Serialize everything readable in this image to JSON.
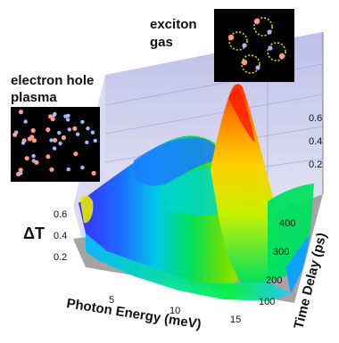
{
  "chart_data": {
    "type": "area",
    "x_axis_label": "Photon Energy (meV)",
    "y_axis_label": "Time Delay (ps)",
    "z_axis_label": "ΔT",
    "x_ticks": [
      "5",
      "10",
      "15"
    ],
    "y_ticks": [
      "100",
      "200",
      "300",
      "400"
    ],
    "z_ticks_left": [
      "0.2",
      "0.4",
      "0.6"
    ],
    "z_ticks_right": [
      "0.2",
      "0.4",
      "0.6"
    ],
    "annotations": [
      {
        "text": "exciton\ngas"
      },
      {
        "text": "electron hole\nplasma"
      }
    ],
    "surface_profile": {
      "photon_energy": [
        1,
        3,
        5,
        7,
        9,
        11,
        13,
        15
      ],
      "time_delay": [
        100,
        200,
        300,
        400,
        500
      ],
      "delta_t": [
        [
          0.3,
          0.25,
          0.22,
          0.22,
          0.28,
          0.55,
          0.45,
          0.3
        ],
        [
          0.25,
          0.2,
          0.18,
          0.2,
          0.3,
          0.62,
          0.55,
          0.3
        ],
        [
          0.2,
          0.16,
          0.15,
          0.18,
          0.35,
          0.68,
          0.6,
          0.28
        ],
        [
          0.15,
          0.12,
          0.12,
          0.15,
          0.4,
          0.72,
          0.62,
          0.25
        ],
        [
          0.1,
          0.1,
          0.1,
          0.14,
          0.45,
          0.75,
          0.6,
          0.22
        ]
      ]
    }
  },
  "colors": {
    "low": "#1414ff",
    "mid": "#00e060",
    "high": "#ff6a00",
    "peak": "#ff2000",
    "wall": "#c8c8e8",
    "floor": "#a6a6a6"
  }
}
